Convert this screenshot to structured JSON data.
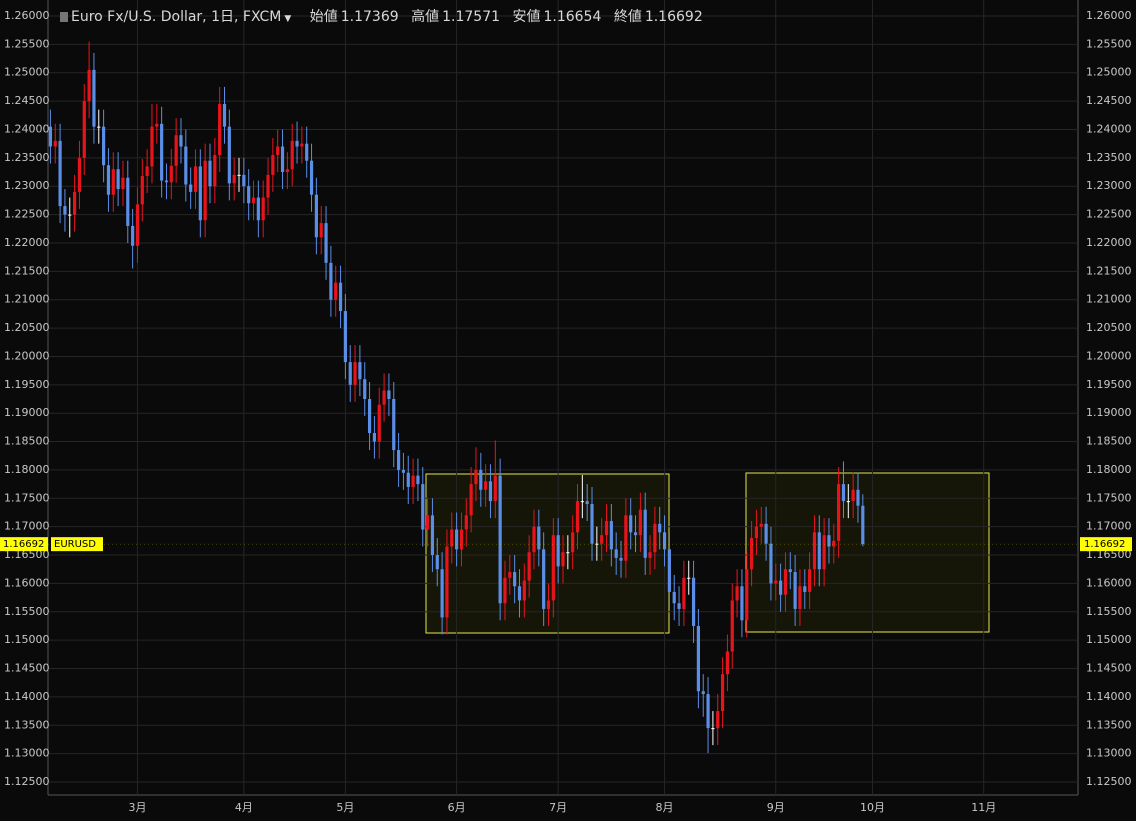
{
  "chart_data": {
    "type": "candlestick",
    "title": "Euro Fx/U.S. Dollar, 1日, FXCM",
    "symbol": "EURUSD",
    "ohlc_labels": [
      "始値",
      "高値",
      "安値",
      "終値"
    ],
    "categories": [
      null,
      null,
      null,
      null,
      null,
      null,
      null,
      null,
      null,
      null,
      null,
      null,
      null,
      null,
      null,
      null,
      null,
      null,
      "3月",
      null,
      null,
      null,
      null,
      null,
      null,
      null,
      null,
      null,
      null,
      null,
      null,
      null,
      null,
      null,
      null,
      null,
      null,
      null,
      null,
      null,
      "4月",
      null,
      null,
      null,
      null,
      null,
      null,
      null,
      null,
      null,
      null,
      null,
      null,
      null,
      null,
      null,
      null,
      null,
      null,
      null,
      null,
      "5月",
      null,
      null,
      null,
      null,
      null,
      null,
      null,
      null,
      null,
      null,
      null,
      null,
      null,
      null,
      null,
      null,
      null,
      null,
      null,
      null,
      null,
      null,
      "6月",
      null,
      null,
      null,
      null,
      null,
      null,
      null,
      null,
      null,
      null,
      null,
      null,
      null,
      null,
      null,
      null,
      null,
      null,
      null,
      null,
      "7月",
      null,
      null,
      null,
      null,
      null,
      null,
      null,
      null,
      null,
      null,
      null,
      null,
      null,
      null,
      null,
      null,
      null,
      null,
      null,
      null,
      null,
      "8月",
      null,
      null,
      null,
      null,
      null,
      null,
      null,
      null,
      null,
      null,
      null,
      null,
      null,
      null,
      null,
      null,
      null,
      null,
      null,
      null,
      null,
      null,
      "9月",
      null,
      null,
      null,
      null,
      null,
      null,
      null,
      null,
      null,
      null,
      null,
      null,
      null,
      null,
      null,
      null,
      null,
      null,
      null,
      "10月",
      null,
      null,
      null,
      null,
      null,
      null,
      null,
      null,
      null,
      null,
      null,
      null,
      null,
      null,
      null,
      null,
      null,
      null,
      null,
      null,
      null,
      null,
      "11月",
      null,
      null,
      null,
      null,
      null,
      null,
      null,
      null,
      null,
      null,
      null,
      null,
      null,
      null,
      null,
      null,
      null,
      null,
      null
    ],
    "open": [
      1.2405,
      1.237,
      1.238,
      1.2265,
      1.225,
      1.225,
      1.229,
      1.235,
      1.245,
      1.2505,
      1.2405,
      1.2405,
      1.2337,
      1.2285,
      1.233,
      1.2295,
      1.2315,
      1.223,
      1.2195,
      1.2268,
      1.2318,
      1.2335,
      1.2405,
      1.241,
      1.231,
      1.2307,
      1.2336,
      1.239,
      1.237,
      1.2303,
      1.229,
      1.2335,
      1.224,
      1.2345,
      1.23,
      1.2355,
      1.2445,
      1.2405,
      1.2305,
      1.232,
      1.232,
      1.23,
      1.227,
      1.228,
      1.224,
      1.228,
      1.232,
      1.2355,
      1.237,
      1.2325,
      1.233,
      1.238,
      1.237,
      1.2375,
      1.2345,
      1.2285,
      1.221,
      1.2235,
      1.2165,
      1.21,
      1.213,
      1.208,
      1.199,
      1.195,
      1.199,
      1.196,
      1.1925,
      1.1865,
      1.185,
      1.1915,
      1.194,
      1.1925,
      1.1835,
      1.18,
      1.1795,
      1.177,
      1.179,
      1.1775,
      1.1695,
      1.172,
      1.165,
      1.1625,
      1.154,
      1.1665,
      1.1695,
      1.166,
      1.1695,
      1.172,
      1.1775,
      1.18,
      1.1765,
      1.178,
      1.1745,
      1.179,
      1.1565,
      1.161,
      1.162,
      1.1595,
      1.157,
      1.1605,
      1.1655,
      1.17,
      1.166,
      1.1555,
      1.157,
      1.1685,
      1.163,
      1.1655,
      1.1655,
      1.169,
      1.1745,
      1.1745,
      1.174,
      1.167,
      1.167,
      1.1685,
      1.171,
      1.166,
      1.1645,
      1.164,
      1.172,
      1.169,
      1.1685,
      1.173,
      1.1645,
      1.1655,
      1.1705,
      1.169,
      1.166,
      1.1585,
      1.1565,
      1.1555,
      1.161,
      1.161,
      1.1525,
      1.141,
      1.1405,
      1.1345,
      1.1345,
      1.1375,
      1.144,
      1.148,
      1.157,
      1.1595,
      1.1535,
      1.1625,
      1.168,
      1.17,
      1.1705,
      1.167,
      1.16,
      1.1605,
      1.158,
      1.1625,
      1.162,
      1.1555,
      1.1595,
      1.1585,
      1.1625,
      1.169,
      1.1625,
      1.1685,
      1.1665,
      1.1675,
      1.1775,
      1.1745,
      1.1745,
      1.1765,
      1.17369,
      null,
      null,
      null,
      null,
      null,
      null,
      null,
      null,
      null,
      null,
      null,
      null,
      null,
      null,
      null,
      null,
      null,
      null,
      null,
      null,
      null,
      null,
      null,
      null,
      null,
      null,
      null,
      null,
      null,
      null,
      null,
      null,
      null,
      null,
      null,
      null,
      null,
      null,
      null,
      null,
      null,
      null,
      null,
      null
    ],
    "high": [
      1.2435,
      1.241,
      1.241,
      1.2295,
      1.228,
      1.232,
      1.238,
      1.248,
      1.2555,
      1.2535,
      1.2435,
      1.2435,
      1.2367,
      1.236,
      1.236,
      1.2345,
      1.2345,
      1.226,
      1.2298,
      1.2348,
      1.2365,
      1.2445,
      1.2445,
      1.244,
      1.234,
      1.2366,
      1.242,
      1.242,
      1.24,
      1.2333,
      1.2365,
      1.2365,
      1.2375,
      1.2375,
      1.2385,
      1.2475,
      1.2475,
      1.2435,
      1.235,
      1.235,
      1.235,
      1.233,
      1.231,
      1.231,
      1.231,
      1.235,
      1.2385,
      1.24,
      1.24,
      1.236,
      1.241,
      1.2414,
      1.2405,
      1.2405,
      1.2375,
      1.2315,
      1.2265,
      1.2265,
      1.2195,
      1.216,
      1.216,
      1.211,
      1.202,
      1.202,
      1.202,
      1.199,
      1.1955,
      1.1895,
      1.1945,
      1.197,
      1.197,
      1.1955,
      1.1865,
      1.183,
      1.1825,
      1.182,
      1.182,
      1.1805,
      1.175,
      1.175,
      1.168,
      1.1655,
      1.1695,
      1.1725,
      1.1725,
      1.1725,
      1.175,
      1.1805,
      1.184,
      1.183,
      1.181,
      1.181,
      1.1852,
      1.182,
      1.164,
      1.165,
      1.165,
      1.1625,
      1.1635,
      1.1685,
      1.173,
      1.173,
      1.169,
      1.16,
      1.1715,
      1.1715,
      1.1685,
      1.1685,
      1.172,
      1.1775,
      1.1791,
      1.1775,
      1.177,
      1.17,
      1.1715,
      1.174,
      1.174,
      1.169,
      1.1675,
      1.175,
      1.175,
      1.172,
      1.176,
      1.176,
      1.1685,
      1.1735,
      1.1735,
      1.172,
      1.169,
      1.1615,
      1.1595,
      1.164,
      1.164,
      1.164,
      1.1555,
      1.144,
      1.1435,
      1.1375,
      1.1405,
      1.147,
      1.151,
      1.16,
      1.1625,
      1.1625,
      1.1655,
      1.171,
      1.173,
      1.1735,
      1.1735,
      1.17,
      1.1635,
      1.1635,
      1.1655,
      1.1655,
      1.165,
      1.1625,
      1.1625,
      1.1655,
      1.172,
      1.172,
      1.1715,
      1.1715,
      1.1705,
      1.1805,
      1.1815,
      1.1775,
      1.1795,
      1.1795,
      1.17571,
      null,
      null,
      null,
      null,
      null,
      null,
      null,
      null,
      null,
      null,
      null,
      null,
      null,
      null,
      null,
      null,
      null,
      null,
      null,
      null,
      null,
      null,
      null,
      null,
      null,
      null,
      null,
      null,
      null,
      null,
      null,
      null,
      null,
      null,
      null,
      null,
      null,
      null,
      null,
      null,
      null,
      null,
      null,
      null
    ],
    "low": [
      1.234,
      1.234,
      1.2235,
      1.222,
      1.221,
      1.222,
      1.226,
      1.232,
      1.242,
      1.2375,
      1.2375,
      1.2307,
      1.2255,
      1.2255,
      1.2265,
      1.2265,
      1.22,
      1.2155,
      1.2165,
      1.2238,
      1.2288,
      1.2305,
      1.2375,
      1.228,
      1.2277,
      1.2277,
      1.2306,
      1.234,
      1.2273,
      1.226,
      1.226,
      1.221,
      1.221,
      1.227,
      1.227,
      1.2325,
      1.2375,
      1.2275,
      1.2275,
      1.229,
      1.227,
      1.224,
      1.224,
      1.221,
      1.221,
      1.225,
      1.229,
      1.2325,
      1.2295,
      1.2295,
      1.23,
      1.234,
      1.234,
      1.2315,
      1.2255,
      1.218,
      1.218,
      1.2135,
      1.207,
      1.207,
      1.205,
      1.196,
      1.192,
      1.192,
      1.193,
      1.1895,
      1.1835,
      1.182,
      1.182,
      1.1885,
      1.1895,
      1.1805,
      1.177,
      1.1765,
      1.174,
      1.174,
      1.1745,
      1.1665,
      1.1665,
      1.162,
      1.1595,
      1.151,
      1.151,
      1.1635,
      1.163,
      1.163,
      1.1665,
      1.169,
      1.1745,
      1.1735,
      1.1735,
      1.1715,
      1.1715,
      1.1535,
      1.1535,
      1.158,
      1.1565,
      1.154,
      1.154,
      1.1575,
      1.1625,
      1.163,
      1.1525,
      1.1525,
      1.154,
      1.16,
      1.16,
      1.1625,
      1.1625,
      1.166,
      1.1715,
      1.171,
      1.164,
      1.164,
      1.164,
      1.1655,
      1.163,
      1.1615,
      1.161,
      1.161,
      1.166,
      1.1655,
      1.1655,
      1.1615,
      1.1615,
      1.1625,
      1.166,
      1.163,
      1.1555,
      1.1535,
      1.1525,
      1.1525,
      1.158,
      1.1495,
      1.138,
      1.1365,
      1.1301,
      1.1315,
      1.1315,
      1.1345,
      1.141,
      1.145,
      1.154,
      1.1505,
      1.1505,
      1.1595,
      1.165,
      1.167,
      1.164,
      1.157,
      1.157,
      1.155,
      1.155,
      1.159,
      1.1525,
      1.1525,
      1.1555,
      1.1555,
      1.1595,
      1.1595,
      1.1595,
      1.1635,
      1.1635,
      1.1645,
      1.1715,
      1.1715,
      1.1715,
      1.1707,
      1.16654,
      null,
      null,
      null,
      null,
      null,
      null,
      null,
      null,
      null,
      null,
      null,
      null,
      null,
      null,
      null,
      null,
      null,
      null,
      null,
      null,
      null,
      null,
      null,
      null,
      null,
      null,
      null,
      null,
      null,
      null,
      null,
      null,
      null,
      null,
      null,
      null,
      null,
      null,
      null,
      null,
      null,
      null,
      null,
      null
    ],
    "close": [
      1.237,
      1.238,
      1.2265,
      1.225,
      1.225,
      1.229,
      1.235,
      1.245,
      1.2505,
      1.2405,
      1.2405,
      1.2337,
      1.2285,
      1.233,
      1.2295,
      1.2315,
      1.223,
      1.2195,
      1.2268,
      1.2318,
      1.2335,
      1.2405,
      1.241,
      1.231,
      1.2307,
      1.2336,
      1.239,
      1.237,
      1.2303,
      1.229,
      1.2335,
      1.224,
      1.2345,
      1.23,
      1.2355,
      1.2445,
      1.2405,
      1.2305,
      1.232,
      1.232,
      1.23,
      1.227,
      1.228,
      1.224,
      1.228,
      1.232,
      1.2355,
      1.237,
      1.2325,
      1.233,
      1.238,
      1.237,
      1.2375,
      1.2345,
      1.2285,
      1.221,
      1.2235,
      1.2165,
      1.21,
      1.213,
      1.208,
      1.199,
      1.195,
      1.199,
      1.196,
      1.1925,
      1.1865,
      1.185,
      1.1915,
      1.194,
      1.1925,
      1.1835,
      1.18,
      1.1795,
      1.177,
      1.179,
      1.1775,
      1.1695,
      1.172,
      1.165,
      1.1625,
      1.154,
      1.1665,
      1.1695,
      1.166,
      1.1695,
      1.172,
      1.1775,
      1.18,
      1.1765,
      1.178,
      1.1745,
      1.179,
      1.1565,
      1.161,
      1.162,
      1.1595,
      1.157,
      1.1605,
      1.1655,
      1.17,
      1.166,
      1.1555,
      1.157,
      1.1685,
      1.163,
      1.1655,
      1.1655,
      1.169,
      1.1745,
      1.1745,
      1.174,
      1.167,
      1.167,
      1.1685,
      1.171,
      1.166,
      1.1645,
      1.164,
      1.172,
      1.169,
      1.1685,
      1.173,
      1.1645,
      1.1655,
      1.1705,
      1.169,
      1.166,
      1.1585,
      1.1565,
      1.1555,
      1.161,
      1.161,
      1.1525,
      1.141,
      1.1405,
      1.1345,
      1.1345,
      1.1375,
      1.144,
      1.148,
      1.157,
      1.1595,
      1.1535,
      1.1625,
      1.168,
      1.17,
      1.1705,
      1.167,
      1.16,
      1.1605,
      1.158,
      1.1625,
      1.162,
      1.1555,
      1.1595,
      1.1585,
      1.1625,
      1.169,
      1.1625,
      1.1685,
      1.1665,
      1.1675,
      1.1775,
      1.1745,
      1.1745,
      1.1765,
      1.1737,
      1.16692,
      null,
      null,
      null,
      null,
      null,
      null,
      null,
      null,
      null,
      null,
      null,
      null,
      null,
      null,
      null,
      null,
      null,
      null,
      null,
      null,
      null,
      null,
      null,
      null,
      null,
      null,
      null,
      null,
      null,
      null,
      null,
      null,
      null,
      null,
      null,
      null,
      null,
      null,
      null,
      null,
      null,
      null,
      null,
      null
    ],
    "up_color": "#e8141c",
    "down_color": "#5b8ee6",
    "price_tag_color": "#ffff00",
    "ylim": [
      1.12271,
      1.26282
    ],
    "yticks": [
      {
        "value": 1.125,
        "label": "1.12500"
      },
      {
        "value": 1.13,
        "label": "1.13000"
      },
      {
        "value": 1.135,
        "label": "1.13500"
      },
      {
        "value": 1.14,
        "label": "1.14000"
      },
      {
        "value": 1.145,
        "label": "1.14500"
      },
      {
        "value": 1.15,
        "label": "1.15000"
      },
      {
        "value": 1.155,
        "label": "1.15500"
      },
      {
        "value": 1.16,
        "label": "1.16000"
      },
      {
        "value": 1.165,
        "label": "1.16500"
      },
      {
        "value": 1.17,
        "label": "1.17000"
      },
      {
        "value": 1.175,
        "label": "1.17500"
      },
      {
        "value": 1.18,
        "label": "1.18000"
      },
      {
        "value": 1.185,
        "label": "1.18500"
      },
      {
        "value": 1.19,
        "label": "1.19000"
      },
      {
        "value": 1.195,
        "label": "1.19500"
      },
      {
        "value": 1.2,
        "label": "1.20000"
      },
      {
        "value": 1.205,
        "label": "1.20500"
      },
      {
        "value": 1.21,
        "label": "1.21000"
      },
      {
        "value": 1.215,
        "label": "1.21500"
      },
      {
        "value": 1.22,
        "label": "1.22000"
      },
      {
        "value": 1.225,
        "label": "1.22500"
      },
      {
        "value": 1.23,
        "label": "1.23000"
      },
      {
        "value": 1.235,
        "label": "1.23500"
      },
      {
        "value": 1.24,
        "label": "1.24000"
      },
      {
        "value": 1.245,
        "label": "1.24500"
      },
      {
        "value": 1.25,
        "label": "1.25000"
      },
      {
        "value": 1.255,
        "label": "1.25500"
      },
      {
        "value": 1.26,
        "label": "1.26000"
      }
    ],
    "grid": true
  }
}
